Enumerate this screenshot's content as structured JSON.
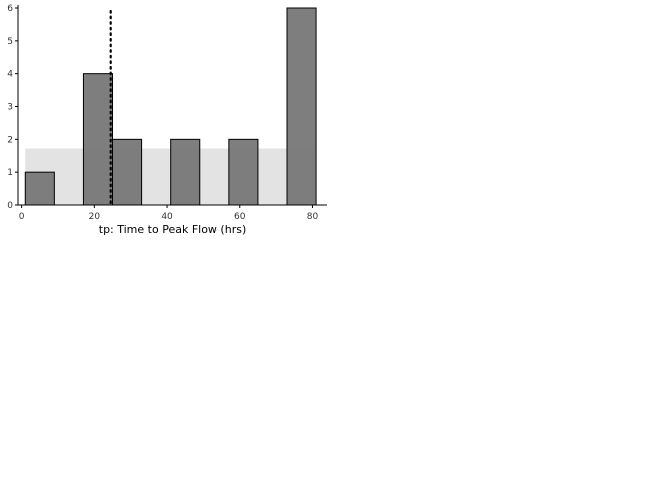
{
  "chart_data": {
    "type": "bar",
    "title": "",
    "xlabel": "tp: Time to Peak Flow (hrs)",
    "ylabel": "",
    "xlim": [
      -1,
      84
    ],
    "ylim": [
      0,
      6
    ],
    "x_ticks": [
      0,
      20,
      40,
      60,
      80
    ],
    "y_ticks": [
      0,
      1,
      2,
      3,
      4,
      5,
      6
    ],
    "bins": [
      {
        "start": 1,
        "end": 9,
        "count": 1
      },
      {
        "start": 17,
        "end": 25,
        "count": 4
      },
      {
        "start": 25,
        "end": 33,
        "count": 2
      },
      {
        "start": 41,
        "end": 49,
        "count": 2
      },
      {
        "start": 57,
        "end": 65,
        "count": 2
      },
      {
        "start": 73,
        "end": 81,
        "count": 6
      }
    ],
    "reference_line": {
      "x": 24.5,
      "style": "dotted"
    },
    "shaded_band": {
      "x_start": 1,
      "x_end": 81,
      "y_top": 1.72
    },
    "bar_color": "#7a7a7a",
    "bar_edge_color": "#000000",
    "band_color": "#e3e3e3",
    "grid": false
  }
}
